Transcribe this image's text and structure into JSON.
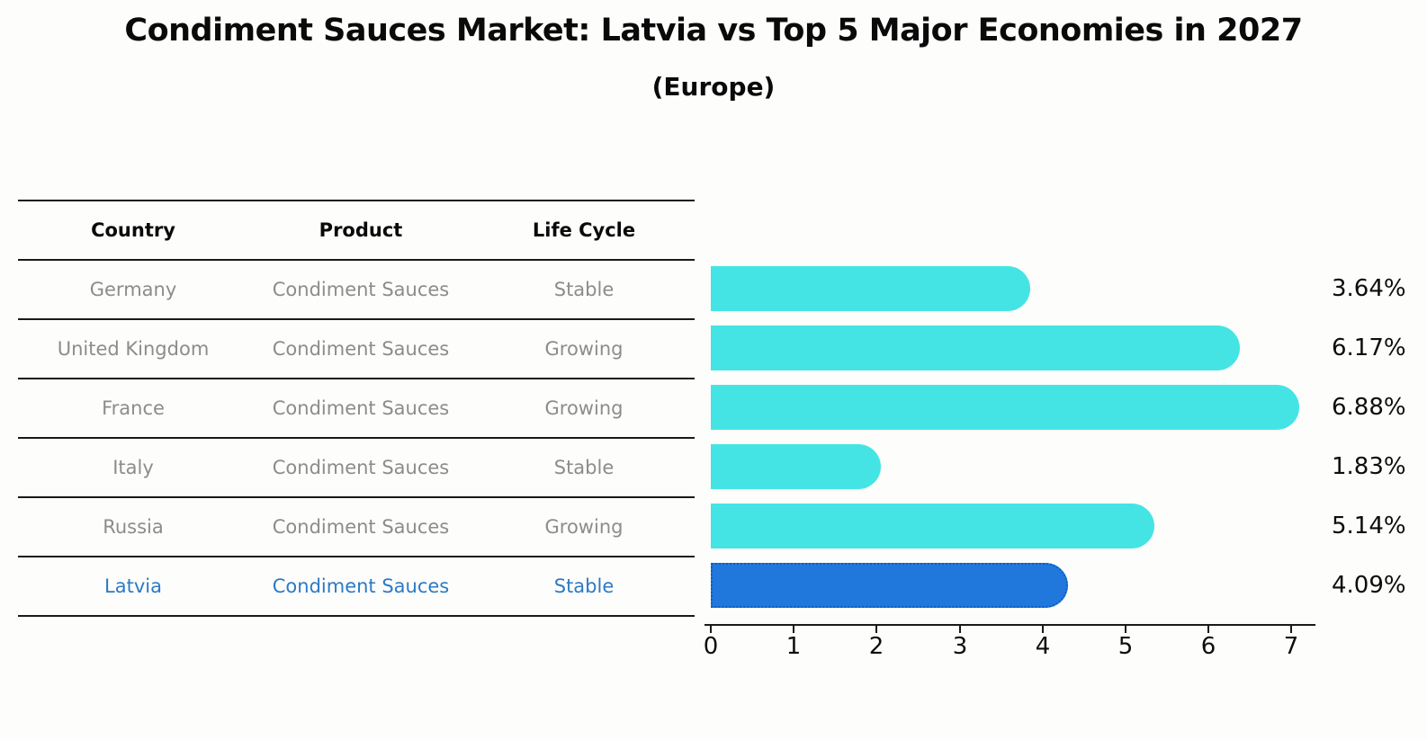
{
  "page": {
    "title": "Condiment Sauces Market: Latvia vs Top 5 Major Economies in 2027",
    "subtitle": "(Europe)"
  },
  "table": {
    "headers": [
      "Country",
      "Product",
      "Life Cycle"
    ],
    "rows": [
      {
        "country": "Germany",
        "product": "Condiment Sauces",
        "life_cycle": "Stable"
      },
      {
        "country": "United Kingdom",
        "product": "Condiment Sauces",
        "life_cycle": "Growing"
      },
      {
        "country": "France",
        "product": "Condiment Sauces",
        "life_cycle": "Growing"
      },
      {
        "country": "Italy",
        "product": "Condiment Sauces",
        "life_cycle": "Stable"
      },
      {
        "country": "Russia",
        "product": "Condiment Sauces",
        "life_cycle": "Growing"
      },
      {
        "country": "Latvia",
        "product": "Condiment Sauces",
        "life_cycle": "Stable"
      }
    ],
    "highlighted_row": "Latvia"
  },
  "chart_data": {
    "type": "bar",
    "orientation": "horizontal",
    "title": "Condiment Sauces Market: Latvia vs Top 5 Major Economies in 2027",
    "subtitle": "(Europe)",
    "categories": [
      "Germany",
      "United Kingdom",
      "France",
      "Italy",
      "Russia",
      "Latvia"
    ],
    "values": [
      3.64,
      6.17,
      6.88,
      1.83,
      5.14,
      4.09
    ],
    "value_labels": [
      "3.64%",
      "6.17%",
      "6.88%",
      "1.83%",
      "5.14%",
      "4.09%"
    ],
    "x_ticks": [
      "0",
      "1",
      "2",
      "3",
      "4",
      "5",
      "6",
      "7"
    ],
    "xlim": [
      0,
      7.3
    ],
    "xlabel": "",
    "ylabel": "",
    "grid": false,
    "legend": false,
    "bar_color": "#45E4E4",
    "highlight_color": "#2178DC",
    "highlight_border_color": "#0E5CC0",
    "highlight_index": 5
  }
}
